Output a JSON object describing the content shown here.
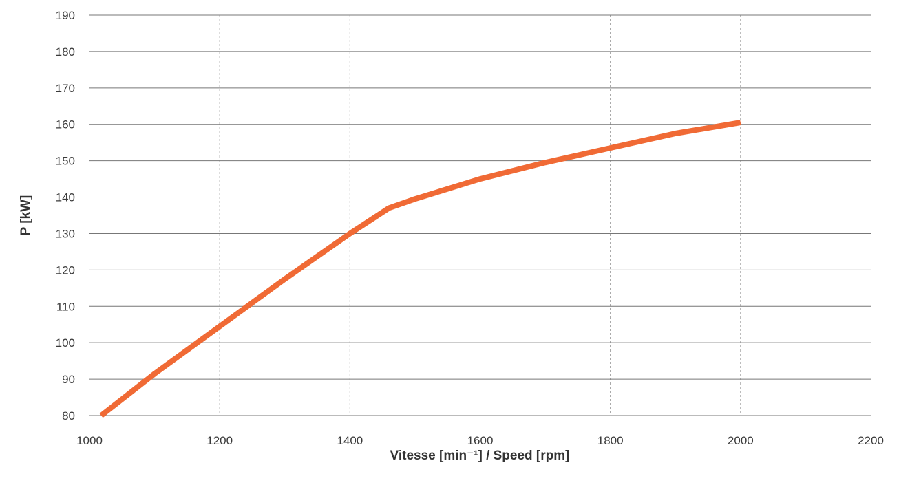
{
  "chart_data": {
    "type": "line",
    "xlabel": "Vitesse [min⁻¹] / Speed [rpm]",
    "ylabel": "P [kW]",
    "xlim": [
      1000,
      2200
    ],
    "ylim": [
      80,
      190
    ],
    "x_ticks": [
      "1000",
      "1200",
      "1400",
      "1600",
      "1800",
      "2000",
      "2200"
    ],
    "y_ticks": [
      "80",
      "90",
      "100",
      "110",
      "120",
      "130",
      "140",
      "150",
      "160",
      "170",
      "180",
      "190"
    ],
    "grid": {
      "horizontal": "solid",
      "vertical": "dashed"
    },
    "series": [
      {
        "color": "#F06A35",
        "x": [
          1018,
          1100,
          1200,
          1300,
          1400,
          1460,
          1500,
          1600,
          1700,
          1800,
          1900,
          2000
        ],
        "y": [
          80,
          91.5,
          104.5,
          117.5,
          130,
          137,
          139.5,
          145,
          149.5,
          153.5,
          157.5,
          160.5
        ]
      }
    ]
  }
}
